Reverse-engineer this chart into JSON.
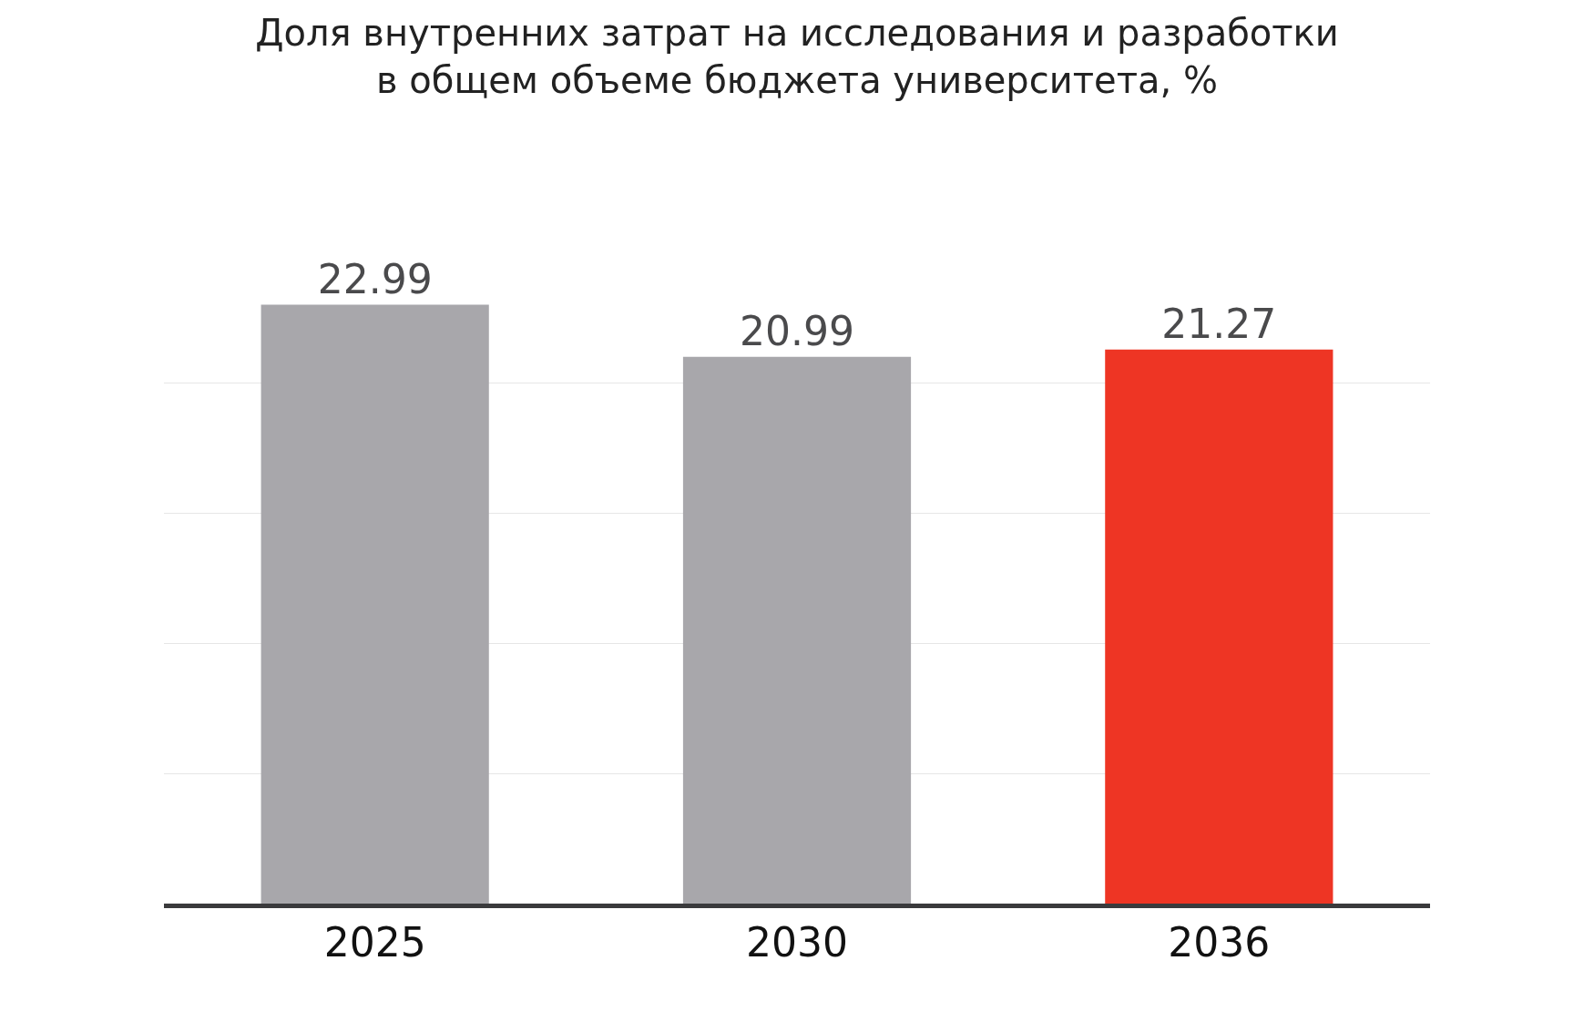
{
  "chart_data": {
    "type": "bar",
    "title": "Доля внутренних затрат на исследования и разработки\nв общем объеме бюджета университета, %",
    "categories": [
      "2025",
      "2030",
      "2036"
    ],
    "values": [
      22.99,
      20.99,
      21.27
    ],
    "colors": [
      "#a8a7ab",
      "#a8a7ab",
      "#ee3524"
    ],
    "data_labels": true,
    "grid": "y",
    "tick_labels": "x",
    "legend": false
  }
}
